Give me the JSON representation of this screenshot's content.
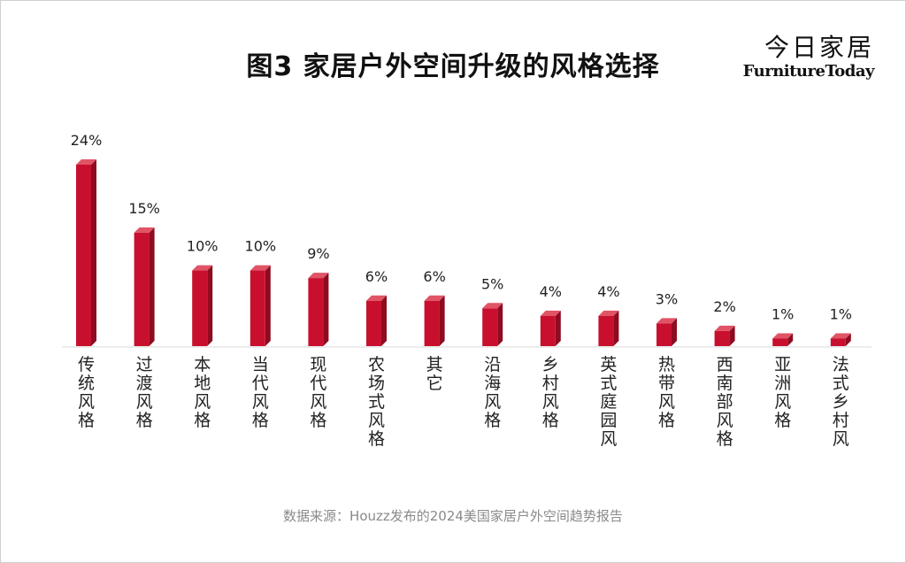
{
  "title": "图3  家居户外空间升级的风格选择",
  "logo": {
    "cn": "今日家居",
    "en_part1": "Furniture",
    "en_part2": "Today"
  },
  "source": "数据来源：Houzz发布的2024美国家居户外空间趋势报告",
  "colors": {
    "bar_front": "#c8102e",
    "bar_top": "#e05466",
    "bar_side": "#8e0b20",
    "text": "#222222"
  },
  "chart_data": {
    "type": "bar",
    "categories": [
      "传统风格",
      "过渡风格",
      "本地风格",
      "当代风格",
      "现代风格",
      "农场式风格",
      "其它",
      "沿海风格",
      "乡村风格",
      "英式庭园风",
      "热带风格",
      "西南部风格",
      "亚洲风格",
      "法式乡村风"
    ],
    "values": [
      24,
      15,
      10,
      10,
      9,
      6,
      6,
      5,
      4,
      4,
      3,
      2,
      1,
      1
    ],
    "value_labels": [
      "24%",
      "15%",
      "10%",
      "10%",
      "9%",
      "6%",
      "6%",
      "5%",
      "4%",
      "4%",
      "3%",
      "2%",
      "1%",
      "1%"
    ],
    "unit": "%",
    "ylim": [
      0,
      24
    ],
    "grid": false,
    "legend": "none"
  }
}
